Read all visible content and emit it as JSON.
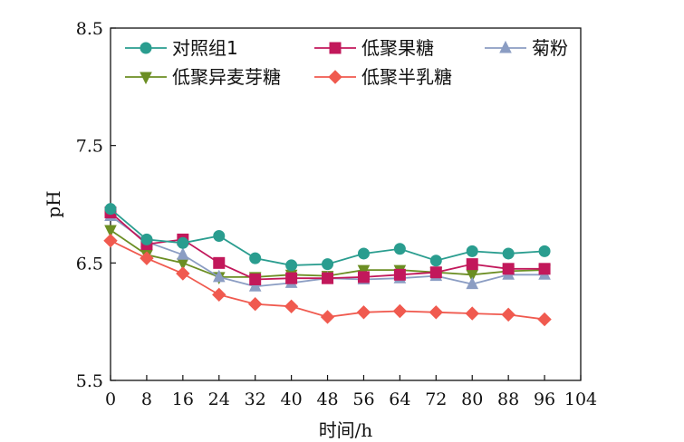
{
  "chart_data": {
    "type": "line",
    "xlabel": "时间/h",
    "ylabel": "pH",
    "xlim": [
      0,
      104
    ],
    "ylim": [
      5.5,
      8.5
    ],
    "xticks": [
      "0",
      "8",
      "16",
      "24",
      "32",
      "40",
      "48",
      "56",
      "64",
      "72",
      "80",
      "88",
      "96",
      "104"
    ],
    "yticks": [
      "5.5",
      "6.5",
      "7.5",
      "8.5"
    ],
    "grid": false,
    "legend_position": "top",
    "x": [
      0,
      8,
      16,
      24,
      32,
      40,
      48,
      56,
      64,
      72,
      80,
      88,
      96
    ],
    "series": [
      {
        "name": "对照组1",
        "color": "#2a9d8f",
        "marker": "circle",
        "values": [
          6.96,
          6.7,
          6.67,
          6.73,
          6.54,
          6.48,
          6.49,
          6.58,
          6.62,
          6.52,
          6.6,
          6.58,
          6.6
        ]
      },
      {
        "name": "低聚果糖",
        "color": "#c2185b",
        "marker": "square",
        "values": [
          6.93,
          6.66,
          6.7,
          6.5,
          6.36,
          6.37,
          6.37,
          6.38,
          6.4,
          6.42,
          6.49,
          6.45,
          6.45
        ]
      },
      {
        "name": "菊粉",
        "color": "#8b9dc3",
        "marker": "triangle-up",
        "values": [
          6.9,
          6.68,
          6.57,
          6.38,
          6.3,
          6.33,
          6.37,
          6.36,
          6.37,
          6.39,
          6.32,
          6.4,
          6.4
        ]
      },
      {
        "name": "低聚异麦芽糖",
        "color": "#6b8e23",
        "marker": "triangle-down",
        "values": [
          6.78,
          6.57,
          6.5,
          6.38,
          6.38,
          6.4,
          6.39,
          6.44,
          6.44,
          6.42,
          6.4,
          6.43,
          6.44
        ]
      },
      {
        "name": "低聚半乳糖",
        "color": "#f05a4f",
        "marker": "diamond",
        "values": [
          6.69,
          6.54,
          6.41,
          6.23,
          6.15,
          6.13,
          6.04,
          6.08,
          6.09,
          6.08,
          6.07,
          6.06,
          6.02
        ]
      }
    ]
  }
}
